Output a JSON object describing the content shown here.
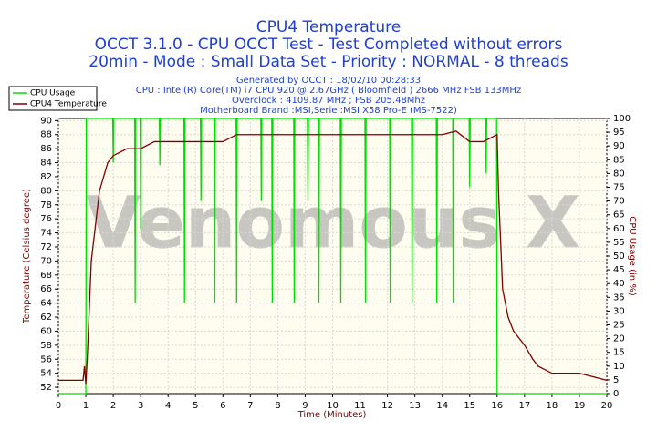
{
  "chart_data": {
    "type": "line",
    "title": "CPU4 Temperature",
    "subtitles": [
      "OCCT 3.1.0 - CPU OCCT Test - Test Completed without errors",
      "20min - Mode : Small Data Set - Priority : NORMAL - 8 threads"
    ],
    "info": [
      "Generated by OCCT : 18/02/10 00:28:33",
      "CPU : Intel(R) Core(TM) i7 CPU 920 @ 2.67GHz ( Bloomfield ) 2666 MHz FSB 133MHz",
      "Overclock : 4109.87 MHz ; FSB 205.48Mhz",
      "Motherboard Brand :MSI,Serie :MSI X58 Pro-E (MS-7522)"
    ],
    "watermark": "Venomous X",
    "x_label": "Time (Minutes)",
    "y_label": "Temperature (Celsius degree)",
    "y2_label": "CPU Usage (in %)",
    "xlim": [
      0,
      20
    ],
    "xticks": [
      0,
      1,
      2,
      3,
      4,
      5,
      6,
      7,
      8,
      9,
      10,
      11,
      12,
      13,
      14,
      15,
      16,
      17,
      18,
      19,
      20
    ],
    "ylim": [
      51.1,
      90.3
    ],
    "yticks": [
      52,
      54,
      56,
      58,
      60,
      62,
      64,
      66,
      68,
      70,
      72,
      74,
      76,
      78,
      80,
      82,
      84,
      86,
      88,
      90
    ],
    "y2lim": [
      0,
      100
    ],
    "y2ticks": [
      0,
      5,
      10,
      15,
      20,
      25,
      30,
      35,
      40,
      45,
      50,
      55,
      60,
      65,
      70,
      75,
      80,
      85,
      90,
      95,
      100
    ],
    "grid": true,
    "legend": "top-left",
    "series": [
      {
        "name": "CPU Usage",
        "color": "#00e000",
        "axis": "y2",
        "x": [
          0,
          1.0,
          1.02,
          1.98,
          2.0,
          2.02,
          2.78,
          2.8,
          2.82,
          2.98,
          3.0,
          3.02,
          3.68,
          3.7,
          3.72,
          4.58,
          4.6,
          4.62,
          5.18,
          5.2,
          5.22,
          5.68,
          5.7,
          5.72,
          6.48,
          6.5,
          6.52,
          7.38,
          7.4,
          7.42,
          7.78,
          7.8,
          7.82,
          8.58,
          8.6,
          8.62,
          9.08,
          9.1,
          9.12,
          9.48,
          9.5,
          9.52,
          10.28,
          10.3,
          10.32,
          11.18,
          11.2,
          11.22,
          12.08,
          12.1,
          12.12,
          12.88,
          12.9,
          12.92,
          13.78,
          13.8,
          13.82,
          14.38,
          14.4,
          14.42,
          14.98,
          15.0,
          15.02,
          15.58,
          15.6,
          15.62,
          15.98,
          16.0,
          20
        ],
        "values": [
          0,
          0,
          100,
          100,
          84,
          100,
          100,
          33,
          100,
          100,
          60,
          100,
          100,
          83,
          100,
          100,
          33,
          100,
          100,
          70,
          100,
          100,
          33,
          100,
          100,
          33,
          100,
          100,
          70,
          100,
          100,
          33,
          100,
          100,
          33,
          100,
          100,
          70,
          100,
          100,
          33,
          100,
          100,
          33,
          100,
          100,
          33,
          100,
          100,
          33,
          100,
          100,
          33,
          100,
          100,
          33,
          100,
          100,
          33,
          100,
          100,
          75,
          100,
          100,
          80,
          100,
          100,
          0,
          0
        ]
      },
      {
        "name": "CPU4 Temperature",
        "color": "#800000",
        "x": [
          0,
          0.9,
          0.95,
          1.0,
          1.05,
          1.2,
          1.5,
          1.8,
          2.0,
          2.5,
          3.0,
          3.5,
          4.0,
          5.0,
          6.0,
          6.5,
          7.0,
          8.0,
          10.0,
          12.0,
          14.0,
          14.5,
          15.0,
          15.5,
          16.0,
          16.05,
          16.2,
          16.4,
          16.6,
          17.0,
          17.3,
          17.5,
          18.0,
          19.0,
          20.0
        ],
        "values": [
          53,
          53,
          55,
          52.5,
          56,
          70,
          80,
          84,
          85,
          86,
          86,
          87,
          87,
          87,
          87,
          88,
          88,
          88,
          88,
          88,
          88,
          88.5,
          87,
          87,
          88,
          80,
          66,
          62,
          60,
          58,
          56,
          55,
          54,
          54,
          53
        ]
      }
    ]
  }
}
